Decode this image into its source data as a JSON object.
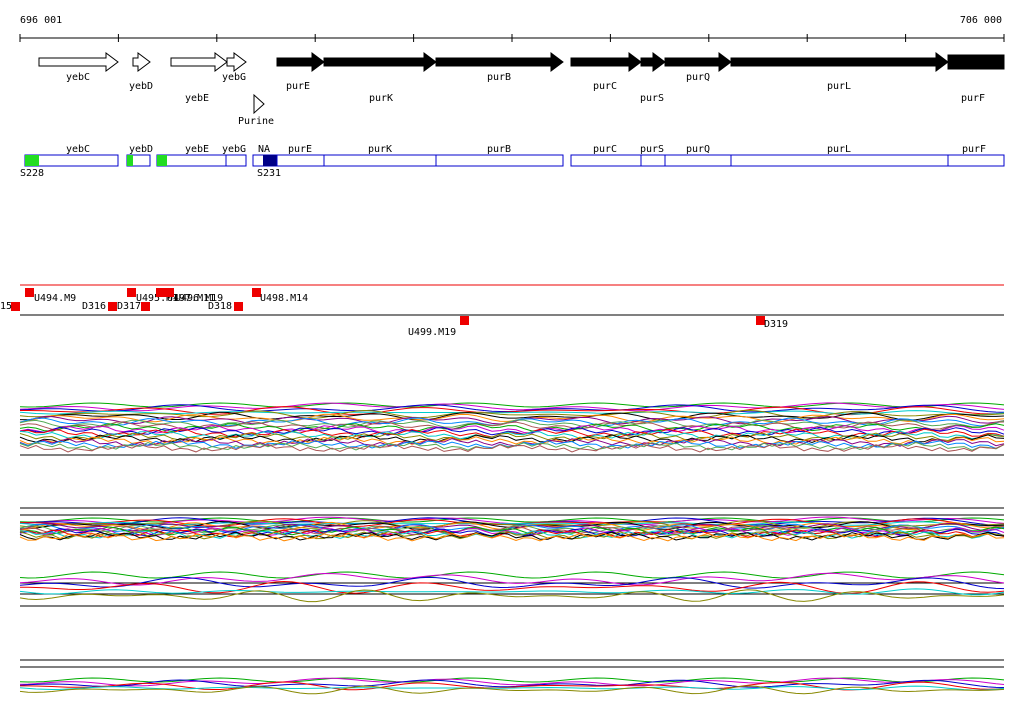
{
  "ruler": {
    "start": "696 001",
    "end": "706 000"
  },
  "genes": [
    "yebC",
    "yebD",
    "yebE",
    "yebG",
    "Purine",
    "purE",
    "purK",
    "purB",
    "purC",
    "purS",
    "purQ",
    "purL",
    "purF"
  ],
  "segments": [
    "yebC",
    "yebD",
    "yebE",
    "yebG",
    "NA",
    "purE",
    "purK",
    "purB",
    "purC",
    "purS",
    "purQ",
    "purL",
    "purF"
  ],
  "sites": [
    "S228",
    "S231"
  ],
  "probes": [
    "15",
    "U494.M9",
    "D316",
    "D317",
    "U495.M1",
    "U497.M11",
    "U496.M19",
    "D318",
    "U498.M14",
    "U499.M19",
    "D319"
  ]
}
